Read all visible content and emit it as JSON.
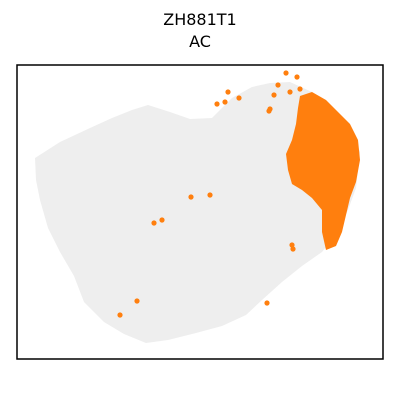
{
  "chart_data": {
    "type": "scatter",
    "title_line1": "ZH881T1",
    "title_line2": "AC",
    "axes_visible": false,
    "grid": false,
    "legend": "none",
    "background_color": "#eeeeee",
    "highlight_color": "#ff7f0e",
    "frame_color": "#000000",
    "xlim": [
      0,
      366
    ],
    "ylim": [
      0,
      294
    ],
    "cluster_label": "AC",
    "highlighted_points": [
      [
        269,
        286
      ],
      [
        280,
        282
      ],
      [
        261,
        274
      ],
      [
        283,
        270
      ],
      [
        273,
        267
      ],
      [
        257,
        264
      ],
      [
        211,
        267
      ],
      [
        222,
        261
      ],
      [
        208,
        257
      ],
      [
        200,
        255
      ],
      [
        252,
        248
      ],
      [
        253,
        250
      ],
      [
        174,
        162
      ],
      [
        193,
        164
      ],
      [
        137,
        136
      ],
      [
        145,
        139
      ],
      [
        319,
        122
      ],
      [
        276,
        110
      ],
      [
        275,
        114
      ],
      [
        120,
        58
      ],
      [
        103,
        44
      ],
      [
        250,
        56
      ]
    ]
  }
}
